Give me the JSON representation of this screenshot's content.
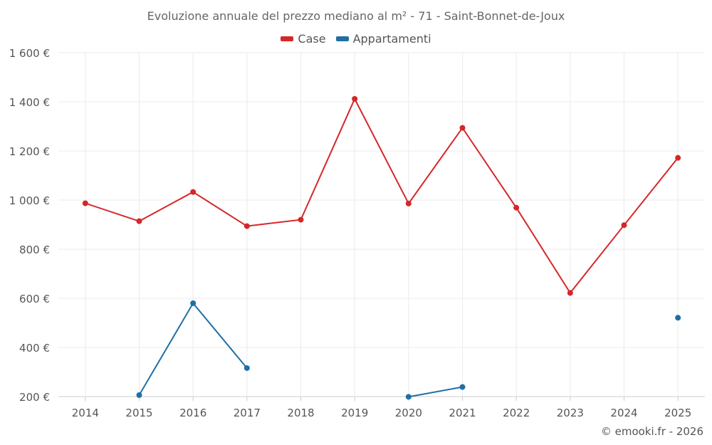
{
  "chart_data": {
    "type": "line",
    "title": "Evoluzione annuale del prezzo mediano al m² - 71 - Saint-Bonnet-de-Joux",
    "categories": [
      "2014",
      "2015",
      "2016",
      "2017",
      "2018",
      "2019",
      "2020",
      "2021",
      "2022",
      "2023",
      "2024",
      "2025"
    ],
    "ylim": [
      200,
      1600
    ],
    "yticks": [
      200,
      400,
      600,
      800,
      1000,
      1200,
      1400,
      1600
    ],
    "ytick_labels": [
      "200 €",
      "400 €",
      "600 €",
      "800 €",
      "1 000 €",
      "1 200 €",
      "1 400 €",
      "1 600 €"
    ],
    "grid": true,
    "legend_position": "top-center",
    "series": [
      {
        "name": "Case",
        "color": "#d62728",
        "values": [
          987,
          914,
          1033,
          894,
          920,
          1412,
          986,
          1294,
          969,
          622,
          898,
          1172
        ]
      },
      {
        "name": "Appartamenti",
        "color": "#1f6fa5",
        "values": [
          null,
          206,
          580,
          316,
          null,
          null,
          199,
          239,
          null,
          null,
          null,
          521
        ]
      }
    ]
  },
  "credit": "© emooki.fr - 2026"
}
